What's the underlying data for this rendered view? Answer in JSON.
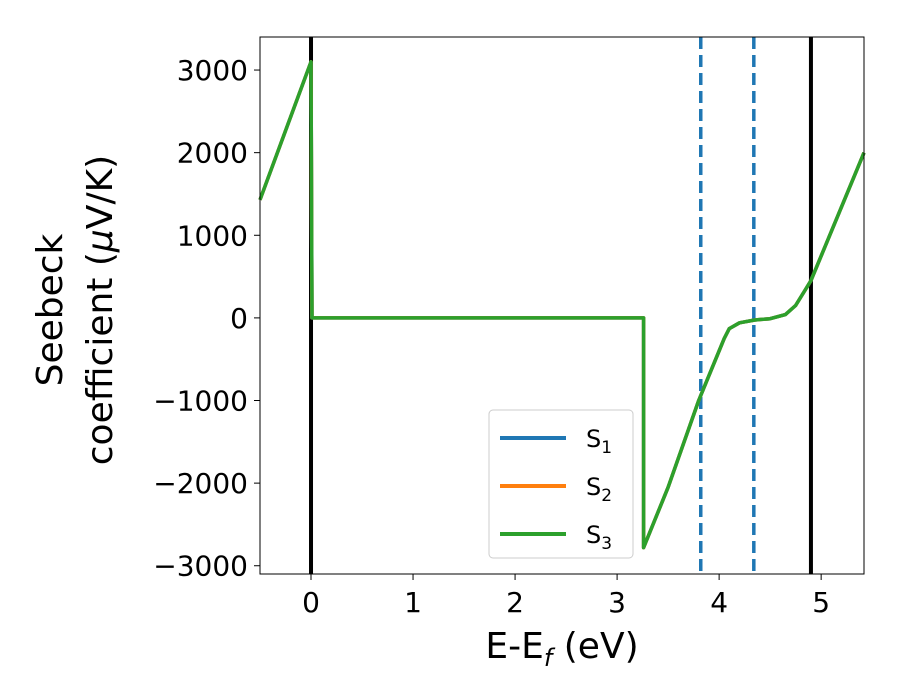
{
  "chart_data": {
    "type": "line",
    "xlabel": {
      "main": "E-E",
      "sub": "f",
      "rest": " (eV)"
    },
    "ylabel": {
      "line1": "Seebeck",
      "line2": "coefficient  (",
      "mu": "μ",
      "line2_rest": "V/K)"
    },
    "xlim": [
      -0.5,
      5.42
    ],
    "ylim": [
      -3100,
      3400
    ],
    "xticks": [
      0,
      1,
      2,
      3,
      4,
      5
    ],
    "xtick_labels": [
      "0",
      "1",
      "2",
      "3",
      "4",
      "5"
    ],
    "yticks": [
      -3000,
      -2000,
      -1000,
      0,
      1000,
      2000,
      3000
    ],
    "ytick_labels": [
      "−3000",
      "−2000",
      "−1000",
      "0",
      "1000",
      "2000",
      "3000"
    ],
    "legend_position": "lower-center",
    "series": [
      {
        "name": "S",
        "sub": "1",
        "color": "#1f77b4",
        "x": [
          -0.5,
          0.0,
          0.01,
          3.26,
          3.26,
          3.5,
          3.8,
          4.0,
          4.05,
          4.1,
          4.2,
          4.35,
          4.5,
          4.65,
          4.75,
          4.85,
          4.9,
          5.42
        ],
        "y": [
          1430,
          3100,
          0,
          0,
          -2780,
          -2050,
          -1000,
          -400,
          -250,
          -130,
          -60,
          -25,
          -10,
          40,
          150,
          350,
          450,
          2000
        ]
      },
      {
        "name": "S",
        "sub": "2",
        "color": "#ff7f0e",
        "x": [
          -0.5,
          0.0,
          0.01,
          3.26,
          3.26,
          3.5,
          3.8,
          4.0,
          4.05,
          4.1,
          4.2,
          4.35,
          4.5,
          4.65,
          4.75,
          4.85,
          4.9,
          5.42
        ],
        "y": [
          1430,
          3100,
          0,
          0,
          -2780,
          -2050,
          -1000,
          -400,
          -250,
          -130,
          -60,
          -25,
          -10,
          40,
          150,
          350,
          450,
          2000
        ]
      },
      {
        "name": "S",
        "sub": "3",
        "color": "#2ca02c",
        "x": [
          -0.5,
          0.0,
          0.01,
          3.26,
          3.26,
          3.5,
          3.8,
          4.0,
          4.05,
          4.1,
          4.2,
          4.35,
          4.5,
          4.65,
          4.75,
          4.85,
          4.9,
          5.42
        ],
        "y": [
          1430,
          3100,
          0,
          0,
          -2780,
          -2050,
          -1000,
          -400,
          -250,
          -130,
          -60,
          -25,
          -10,
          40,
          150,
          350,
          450,
          2000
        ]
      }
    ],
    "vlines": [
      {
        "x": 0.0,
        "style": "solid",
        "color": "#000000"
      },
      {
        "x": 4.9,
        "style": "solid",
        "color": "#000000"
      },
      {
        "x": 3.82,
        "style": "dashed",
        "color": "#1f77b4"
      },
      {
        "x": 4.34,
        "style": "dashed",
        "color": "#1f77b4"
      }
    ]
  }
}
